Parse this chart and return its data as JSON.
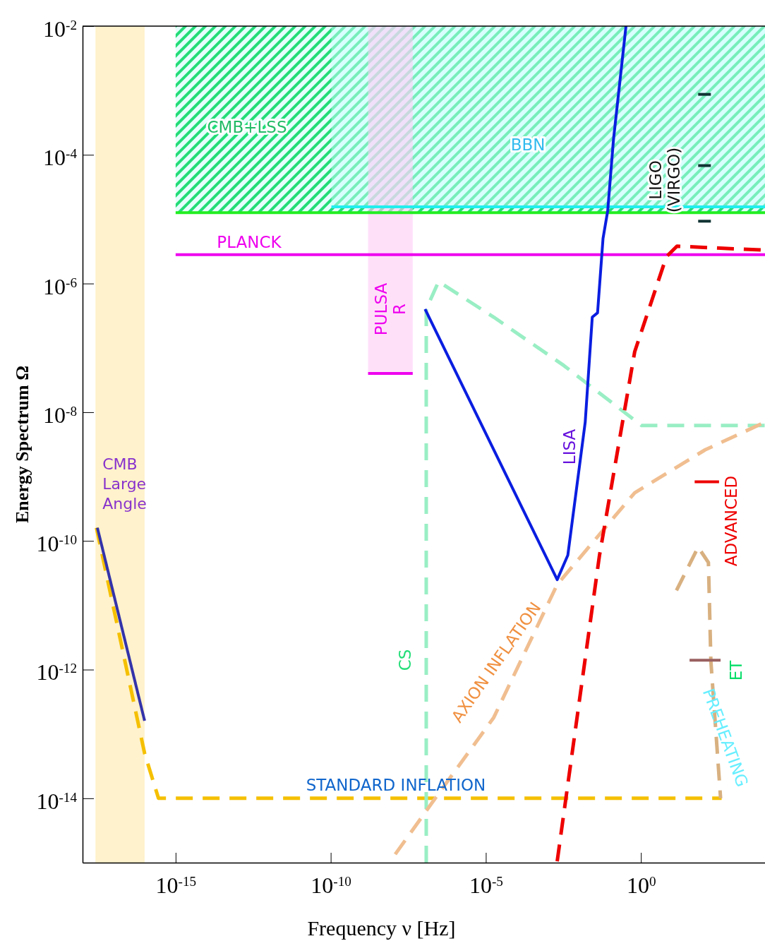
{
  "chart_data": {
    "type": "line",
    "log": "xy",
    "xlabel": "Frequency ν [Hz]",
    "ylabel": "Energy Spectrum Ω",
    "marker": "none",
    "xlim": [
      1e-18,
      10000.0
    ],
    "ylim": [
      1e-15,
      0.01
    ],
    "xticks": [
      {
        "value": 1e-15,
        "label": "10$^{-15}$"
      },
      {
        "value": 1e-10,
        "label": "10$^{-10}$"
      },
      {
        "value": 1e-05,
        "label": "10$^{-5}$"
      },
      {
        "value": 1,
        "label": "10$^{0}$"
      }
    ],
    "yticks": [
      {
        "value": 1e-14,
        "label": "10$^{-14}$"
      },
      {
        "value": 1e-12,
        "label": "10$^{-12}$"
      },
      {
        "value": 1e-10,
        "label": "10$^{-10}$"
      },
      {
        "value": 1e-08,
        "label": "10$^{-8}$"
      },
      {
        "value": 1e-06,
        "label": "10$^{-6}$"
      },
      {
        "value": 0.0001,
        "label": "10$^{-4}$"
      },
      {
        "value": 0.01,
        "label": "10$^{-2}$"
      }
    ],
    "bands": [
      {
        "axis": "x",
        "from": 2.6e-18,
        "to": 1e-16,
        "label": "CMB\nLarge\nAngle",
        "color": "#fff2cc"
      }
    ],
    "series": [
      {
        "color": "#22ee22",
        "line_style": "solid",
        "x": [
          1e-15,
          10000.0
        ],
        "values": [
          1.26e-05,
          1.26e-05
        ]
      },
      {
        "color": "#22eeee",
        "line_style": "solid",
        "x": [
          1.05e-10,
          10000.0
        ],
        "values": [
          1.55e-05,
          1.55e-05
        ]
      },
      {
        "color": "#ee00ee",
        "line_style": "solid",
        "x": [
          1.6e-09,
          4.4e-08
        ],
        "values": [
          4e-08,
          4e-08
        ]
      },
      {
        "color": "#ee00ee",
        "line_style": "solid",
        "x": [
          1e-15,
          10000.0
        ],
        "values": [
          2.8e-06,
          2.8e-06
        ]
      },
      {
        "color": "#f5c000",
        "line_style": "dashed",
        "x": [
          2.8e-18,
          1e-16,
          2.8e-16,
          400
        ],
        "values": [
          1.6e-10,
          5e-14,
          1e-14,
          1e-14
        ]
      },
      {
        "color": "#3333aa",
        "line_style": "solid",
        "x": [
          3e-18,
          1e-16
        ],
        "values": [
          1.6e-10,
          1.6e-13
        ]
      },
      {
        "color": "#99eec4",
        "line_style": "dashed",
        "x": [
          1.2e-07,
          1.2e-07,
          3e-07,
          1.8e-05,
          0.0033,
          1.05,
          10000.0
        ],
        "values": [
          1e-15,
          4e-07,
          1.07e-06,
          3e-07,
          5.3e-08,
          6.2e-09,
          6.2e-09
        ]
      },
      {
        "color": "#f0be90",
        "line_style": "dashed",
        "x": [
          1.2e-08,
          2.7e-07,
          1.8e-05,
          0.002,
          0.63,
          117,
          10000.0
        ],
        "values": [
          1.35e-15,
          1.1e-14,
          1.8e-13,
          2.1e-11,
          5.6e-10,
          2.6e-09,
          7e-09
        ]
      },
      {
        "color": "#d8b080",
        "line_style": "dashed",
        "x": [
          14,
          70,
          150,
          180,
          370
        ],
        "values": [
          1.7e-11,
          8e-11,
          4.6e-11,
          1.35e-12,
          1e-14
        ]
      },
      {
        "color": "#ee0000",
        "line_style": "dashed",
        "x": [
          0.002,
          0.046,
          0.63,
          6.6,
          14.5,
          10000.0
        ],
        "values": [
          1.05e-15,
          5.9e-11,
          8.7e-08,
          2.6e-06,
          3.8e-06,
          3.3e-06
        ]
      },
      {
        "color": "#0a1ee0",
        "line_style": "solid",
        "x": [
          1.1e-07,
          0.002,
          0.0044,
          0.016,
          0.027,
          0.04,
          0.06,
          0.085,
          0.13,
          0.33
        ],
        "values": [
          4e-07,
          2.5e-11,
          6e-11,
          7e-09,
          3e-07,
          3.5e-07,
          5e-06,
          1.35e-05,
          0.00017,
          0.01
        ]
      },
      {
        "color": "#113333",
        "line_style": "solid",
        "x": [
          70,
          180
        ],
        "values": [
          0.00087,
          0.00087
        ]
      },
      {
        "color": "#113333",
        "line_style": "solid",
        "x": [
          70,
          180
        ],
        "values": [
          6.8e-05,
          6.8e-05
        ]
      },
      {
        "color": "#113333",
        "line_style": "solid",
        "x": [
          70,
          180
        ],
        "values": [
          9.3e-06,
          9.3e-06
        ]
      },
      {
        "color": "#ee0000",
        "line_style": "solid",
        "x": [
          54,
          330
        ],
        "values": [
          8.3e-10,
          8.3e-10
        ]
      },
      {
        "color": "#9a6060",
        "line_style": "solid",
        "x": [
          37,
          370
        ],
        "values": [
          1.4e-12,
          1.4e-12
        ]
      }
    ],
    "annotations": [
      "CMB+LSS",
      "BBN",
      "LIGO\n(VIRGO)",
      "PLANCK",
      "PULSA\nR",
      "LISA",
      "CS",
      "AXION INFLATION",
      "ADVANCED",
      "ET",
      "PREHEATING",
      "STANDARD  INFLATION"
    ]
  }
}
